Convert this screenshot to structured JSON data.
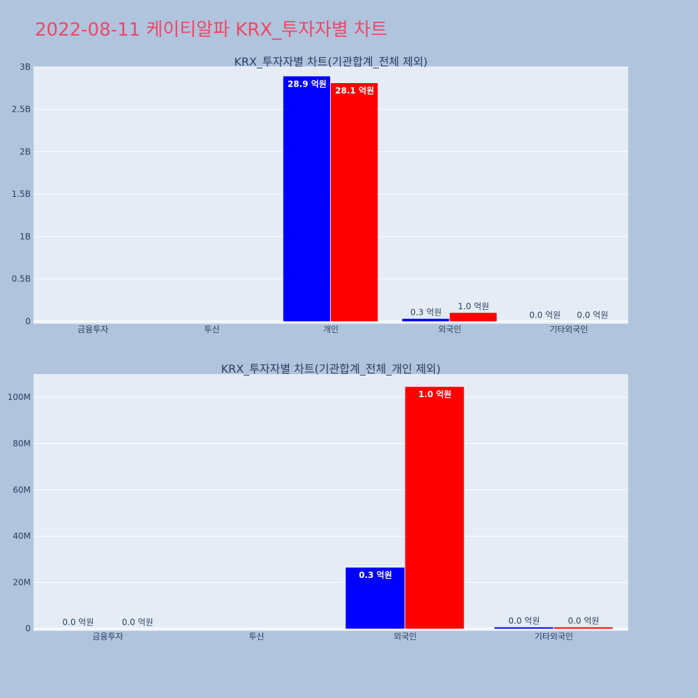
{
  "page_title": "2022-08-11 케이티알파 KRX_투자자별 차트",
  "colors": {
    "background": "#b0c4de",
    "plot_background": "#e5ecf6",
    "title": "#ee4763",
    "text": "#2a3f5f",
    "series_1": "#0000ff",
    "series_2": "#ff0000"
  },
  "chart_data": [
    {
      "type": "bar",
      "title": "KRX_투자자별 차트(기관합계_전체 제외)",
      "categories": [
        "금융투자",
        "투신",
        "개인",
        "외국인",
        "기타외국인"
      ],
      "series": [
        {
          "values": [
            0,
            0,
            2890000000,
            30000000,
            0
          ],
          "labels": [
            "",
            "",
            "28.9 억원",
            "0.3 억원",
            "0.0 억원"
          ],
          "color": "#0000ff"
        },
        {
          "values": [
            0,
            0,
            2810000000,
            100000000,
            0
          ],
          "labels": [
            "",
            "",
            "28.1 억원",
            "1.0 억원",
            "0.0 억원"
          ],
          "color": "#ff0000"
        }
      ],
      "yticks": [
        {
          "value": 0,
          "label": "0"
        },
        {
          "value": 500000000,
          "label": "0.5B"
        },
        {
          "value": 1000000000,
          "label": "1B"
        },
        {
          "value": 1500000000,
          "label": "1.5B"
        },
        {
          "value": 2000000000,
          "label": "2B"
        },
        {
          "value": 2500000000,
          "label": "2.5B"
        },
        {
          "value": 3000000000,
          "label": "3B"
        }
      ],
      "ylim": [
        -30000000,
        3000000000
      ],
      "grid": true,
      "legend": "none"
    },
    {
      "type": "bar",
      "title": "KRX_투자자별 차트(기관합계_전체_개인 제외)",
      "categories": [
        "금융투자",
        "투신",
        "외국인",
        "기타외국인"
      ],
      "series": [
        {
          "values": [
            0,
            0,
            26400000,
            500000
          ],
          "labels": [
            "0.0 억원",
            "",
            "0.3 억원",
            "0.0 억원"
          ],
          "color": "#0000ff"
        },
        {
          "values": [
            0,
            0,
            104500000,
            500000
          ],
          "labels": [
            "0.0 억원",
            "",
            "1.0 억원",
            "0.0 억원"
          ],
          "color": "#ff0000"
        }
      ],
      "yticks": [
        {
          "value": 0,
          "label": "0"
        },
        {
          "value": 20000000,
          "label": "20M"
        },
        {
          "value": 40000000,
          "label": "40M"
        },
        {
          "value": 60000000,
          "label": "60M"
        },
        {
          "value": 80000000,
          "label": "80M"
        },
        {
          "value": 100000000,
          "label": "100M"
        }
      ],
      "ylim": [
        -1000000,
        110000000
      ],
      "grid": true,
      "legend": "none"
    }
  ]
}
